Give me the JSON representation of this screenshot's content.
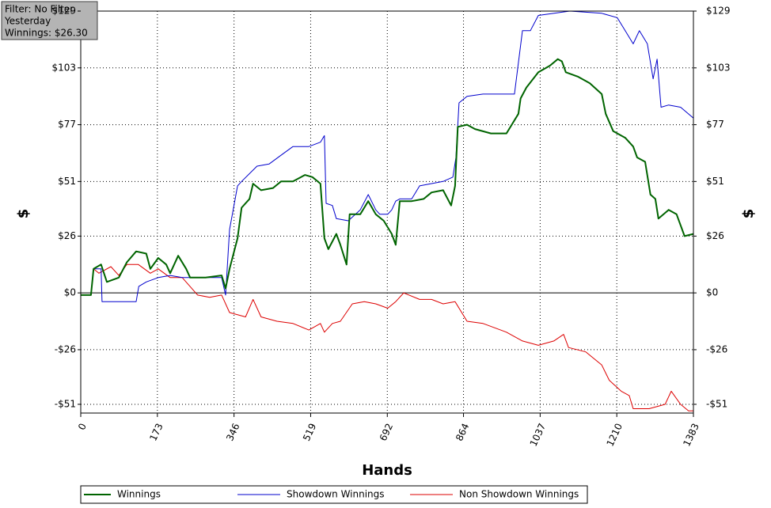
{
  "chart_data": {
    "type": "line",
    "annotations": [
      "Filter: No Filter",
      "Yesterday",
      "Winnings: $26.30"
    ],
    "x_label": "Hands",
    "y_label": "$",
    "xlim": [
      0,
      1383
    ],
    "xticks": [
      0,
      173,
      346,
      519,
      692,
      864,
      1037,
      1210,
      1383
    ],
    "ylim": [
      -55,
      129
    ],
    "yticks": [
      {
        "value": -51,
        "label": "-$51"
      },
      {
        "value": -26,
        "label": "-$26"
      },
      {
        "value": 0,
        "label": "$0"
      },
      {
        "value": 26,
        "label": "$26"
      },
      {
        "value": 51,
        "label": "$51"
      },
      {
        "value": 77,
        "label": "$77"
      },
      {
        "value": 103,
        "label": "$103"
      },
      {
        "value": 129,
        "label": "$129"
      }
    ],
    "grid": true,
    "legend": "bottom",
    "series": [
      {
        "name": "Winnings",
        "color": "#006400",
        "x": [
          0,
          23,
          29,
          46,
          59,
          86,
          104,
          125,
          148,
          157,
          175,
          193,
          202,
          220,
          238,
          247,
          282,
          318,
          327,
          336,
          354,
          363,
          381,
          389,
          407,
          434,
          452,
          479,
          506,
          523,
          541,
          550,
          559,
          577,
          586,
          600,
          607,
          631,
          649,
          666,
          684,
          702,
          711,
          720,
          747,
          774,
          792,
          818,
          836,
          845,
          851,
          872,
          890,
          926,
          961,
          988,
          993,
          1006,
          1033,
          1059,
          1077,
          1086,
          1095,
          1122,
          1149,
          1176,
          1185,
          1202,
          1229,
          1247,
          1256,
          1274,
          1286,
          1297,
          1304,
          1327,
          1345,
          1363,
          1383
        ],
        "values": [
          -1,
          -1,
          11,
          13,
          5,
          7,
          14,
          19,
          18,
          11,
          16,
          13,
          9,
          17,
          11,
          7,
          7,
          8,
          2,
          11,
          25,
          39,
          43,
          50,
          47,
          48,
          51,
          51,
          54,
          53,
          50,
          25,
          20,
          27,
          22,
          13,
          36,
          36,
          42,
          36,
          33,
          27,
          22,
          42,
          42,
          43,
          46,
          47,
          40,
          49,
          76,
          77,
          75,
          73,
          73,
          82,
          89,
          94,
          101,
          104,
          107,
          106,
          101,
          99,
          96,
          91,
          82,
          74,
          71,
          67,
          62,
          60,
          45,
          43,
          34,
          38,
          36,
          26,
          27
        ]
      },
      {
        "name": "Showdown Winnings",
        "color": "#0000cd",
        "x": [
          0,
          23,
          29,
          46,
          48,
          125,
          131,
          148,
          175,
          202,
          229,
          318,
          327,
          336,
          354,
          363,
          398,
          425,
          452,
          479,
          515,
          541,
          550,
          554,
          568,
          577,
          604,
          631,
          649,
          666,
          675,
          693,
          702,
          711,
          720,
          747,
          765,
          818,
          840,
          847,
          854,
          872,
          908,
          979,
          997,
          1015,
          1033,
          1104,
          1176,
          1211,
          1229,
          1247,
          1261,
          1279,
          1292,
          1301,
          1310,
          1327,
          1354,
          1383
        ],
        "values": [
          -1,
          -1,
          11,
          11,
          -4,
          -4,
          3,
          5,
          7,
          8,
          7,
          7,
          -1,
          29,
          49,
          51,
          58,
          59,
          63,
          67,
          67,
          69,
          72,
          41,
          40,
          34,
          33,
          38,
          45,
          38,
          36,
          36,
          38,
          42,
          43,
          43,
          49,
          51,
          53,
          62,
          87,
          90,
          91,
          91,
          120,
          120,
          127,
          129,
          128,
          126,
          120,
          114,
          120,
          114,
          98,
          107,
          85,
          86,
          85,
          80
        ]
      },
      {
        "name": "Non Showdown Winnings",
        "color": "#dd0000",
        "x": [
          0,
          23,
          29,
          41,
          68,
          86,
          104,
          130,
          157,
          175,
          202,
          229,
          264,
          291,
          318,
          336,
          372,
          389,
          407,
          443,
          479,
          515,
          541,
          550,
          568,
          586,
          613,
          640,
          666,
          693,
          711,
          729,
          765,
          792,
          818,
          845,
          872,
          908,
          961,
          997,
          1033,
          1068,
          1090,
          1101,
          1140,
          1176,
          1193,
          1220,
          1238,
          1247,
          1283,
          1319,
          1333,
          1354,
          1372,
          1383
        ],
        "values": [
          -1,
          -1,
          11,
          9,
          12,
          8,
          13,
          13,
          9,
          11,
          7,
          7,
          -1,
          -2,
          -1,
          -9,
          -11,
          -3,
          -11,
          -13,
          -14,
          -17,
          -14,
          -18,
          -14,
          -13,
          -5,
          -4,
          -5,
          -7,
          -4,
          0,
          -3,
          -3,
          -5,
          -4,
          -13,
          -14,
          -18,
          -22,
          -24,
          -22,
          -19,
          -25,
          -27,
          -33,
          -40,
          -45,
          -47,
          -53,
          -53,
          -51,
          -45,
          -51,
          -54,
          -54
        ]
      }
    ]
  }
}
